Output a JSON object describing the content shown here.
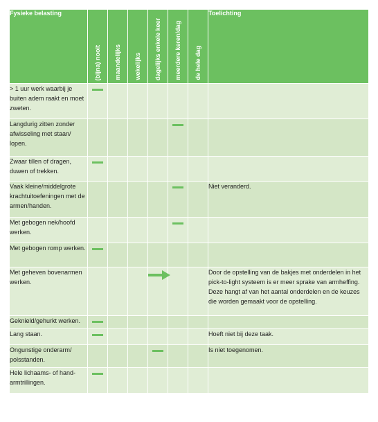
{
  "header": {
    "col1": "Fysieke belasting",
    "freq": [
      "(bijna) nooit",
      "maandelijks",
      "wekelijks",
      "dagelijks enkele keer",
      "meerdere keren/dag",
      "de hele dag"
    ],
    "note": "Toelichting"
  },
  "rows": [
    {
      "label": "> 1 uur werk waarbij je buiten adem raakt en moet zweten.",
      "mark": 0,
      "mark_type": "dash",
      "note": ""
    },
    {
      "label": "Langdurig zitten zonder afwisseling met staan/ lopen.",
      "mark": 4,
      "mark_type": "dash",
      "note": ""
    },
    {
      "label": "Zwaar tillen of dragen, duwen of trekken.",
      "mark": 0,
      "mark_type": "dash",
      "note": ""
    },
    {
      "label": "Vaak kleine/middelgrote krachtuitoefeningen met de armen/handen.",
      "mark": 4,
      "mark_type": "dash",
      "note": "Niet veranderd."
    },
    {
      "label": "Met gebogen nek/hoofd werken.",
      "mark": 4,
      "mark_type": "dash",
      "note": ""
    },
    {
      "label": "Met gebogen romp werken.",
      "mark": 0,
      "mark_type": "dash",
      "note": ""
    },
    {
      "label": "Met geheven bovenarmen werken.",
      "mark": 3,
      "mark_type": "arrow",
      "note": "Door de opstelling van de bakjes met onderdelen in het pick-to-light systeem is er meer sprake van armheffing. Deze hangt af van het aantal onderdelen en de keuzes die worden gemaakt voor de opstelling."
    },
    {
      "label": "Geknield/gehurkt werken.",
      "mark": 0,
      "mark_type": "dash",
      "note": ""
    },
    {
      "label": "Lang staan.",
      "mark": 0,
      "mark_type": "dash",
      "note": "Hoeft niet bij deze taak."
    },
    {
      "label": "Ongunstige onderarm/ polsstanden.",
      "mark": 3,
      "mark_type": "dash",
      "note": "Is niet toegenomen."
    },
    {
      "label": "Hele lichaams- of hand-armtrillingen.",
      "mark": 0,
      "mark_type": "dash",
      "note": ""
    }
  ],
  "colors": {
    "header": "#6cc060",
    "row_light": "#e0edd5",
    "row_dark": "#d4e6c6",
    "mark": "#6cc060"
  }
}
